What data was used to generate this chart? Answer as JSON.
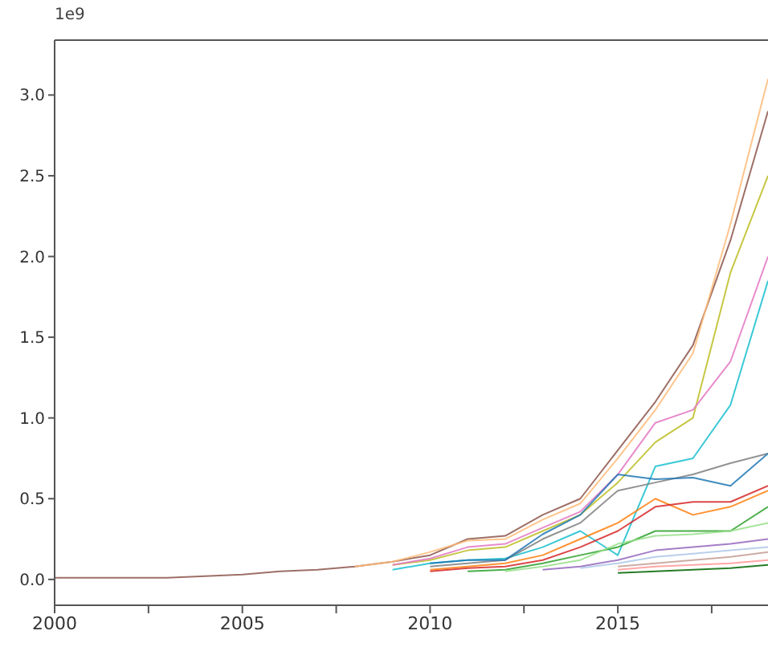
{
  "chart_data": {
    "type": "line",
    "x": [
      2000,
      2001,
      2002,
      2003,
      2004,
      2005,
      2006,
      2007,
      2008,
      2009,
      2010,
      2011,
      2012,
      2013,
      2014,
      2015,
      2016,
      2017,
      2018,
      2019
    ],
    "xlim": [
      2000,
      2019
    ],
    "xticks": [
      2000,
      {
        "value": 2002.5,
        "label": null
      },
      2005,
      {
        "value": 2007.5,
        "label": null
      },
      2010,
      {
        "value": 2012.5,
        "label": null
      },
      2015,
      {
        "value": 2017.5,
        "label": null
      }
    ],
    "ylim": [
      -0.16,
      3.34
    ],
    "yticks": [
      {
        "value": 0,
        "label": "0.0"
      },
      0.5,
      {
        "value": 1,
        "label": "1.0"
      },
      1.5,
      {
        "value": 2,
        "label": "2.0"
      },
      2.5,
      {
        "value": 3,
        "label": "3.0"
      }
    ],
    "annotations": [
      "1e9"
    ],
    "series": [
      {
        "color": "#8c564b",
        "values": [
          0.01,
          0.01,
          0.01,
          0.01,
          0.02,
          0.03,
          0.05,
          0.06,
          0.08,
          0.11,
          0.15,
          0.25,
          0.27,
          0.4,
          0.5,
          0.8,
          1.1,
          1.45,
          2.1,
          2.9
        ]
      },
      {
        "color": "#ffbb78",
        "values": [
          null,
          null,
          null,
          null,
          null,
          null,
          null,
          null,
          0.08,
          0.11,
          0.17,
          0.24,
          0.25,
          0.37,
          0.47,
          0.75,
          1.05,
          1.4,
          2.2,
          3.1
        ]
      },
      {
        "color": "#bcbd22",
        "values": [
          null,
          null,
          null,
          null,
          null,
          null,
          null,
          null,
          null,
          0.09,
          0.12,
          0.18,
          0.2,
          0.3,
          0.4,
          0.6,
          0.85,
          1.0,
          1.9,
          2.5
        ]
      },
      {
        "color": "#e377c2",
        "values": [
          null,
          null,
          null,
          null,
          null,
          null,
          null,
          null,
          null,
          0.09,
          0.13,
          0.2,
          0.22,
          0.32,
          0.42,
          0.65,
          0.97,
          1.05,
          1.35,
          2.0
        ]
      },
      {
        "color": "#17becf",
        "values": [
          null,
          null,
          null,
          null,
          null,
          null,
          null,
          null,
          null,
          0.06,
          0.1,
          0.12,
          0.13,
          0.2,
          0.3,
          0.15,
          0.7,
          0.75,
          1.08,
          1.85
        ]
      },
      {
        "color": "#7f7f7f",
        "values": [
          null,
          null,
          null,
          null,
          null,
          null,
          null,
          null,
          null,
          null,
          0.08,
          0.1,
          0.12,
          0.25,
          0.35,
          0.55,
          0.6,
          0.65,
          0.72,
          0.78
        ]
      },
      {
        "color": "#1f77b4",
        "values": [
          null,
          null,
          null,
          null,
          null,
          null,
          null,
          null,
          null,
          null,
          0.1,
          0.12,
          0.12,
          0.28,
          0.4,
          0.65,
          0.62,
          0.63,
          0.58,
          0.78
        ]
      },
      {
        "color": "#ff7f0e",
        "values": [
          null,
          null,
          null,
          null,
          null,
          null,
          null,
          null,
          null,
          null,
          0.06,
          0.08,
          0.1,
          0.15,
          0.25,
          0.35,
          0.5,
          0.4,
          0.45,
          0.55
        ]
      },
      {
        "color": "#d62728",
        "values": [
          null,
          null,
          null,
          null,
          null,
          null,
          null,
          null,
          null,
          null,
          0.05,
          0.07,
          0.08,
          0.12,
          0.2,
          0.3,
          0.45,
          0.48,
          0.48,
          0.58
        ]
      },
      {
        "color": "#2ca02c",
        "values": [
          null,
          null,
          null,
          null,
          null,
          null,
          null,
          null,
          null,
          null,
          null,
          0.05,
          0.06,
          0.1,
          0.15,
          0.2,
          0.3,
          0.3,
          0.3,
          0.45
        ]
      },
      {
        "color": "#98df8a",
        "values": [
          null,
          null,
          null,
          null,
          null,
          null,
          null,
          null,
          null,
          null,
          null,
          null,
          0.05,
          0.08,
          0.12,
          0.22,
          0.27,
          0.28,
          0.3,
          0.35
        ]
      },
      {
        "color": "#9467bd",
        "values": [
          null,
          null,
          null,
          null,
          null,
          null,
          null,
          null,
          null,
          null,
          null,
          null,
          null,
          0.06,
          0.08,
          0.12,
          0.18,
          0.2,
          0.22,
          0.25
        ]
      },
      {
        "color": "#aec7e8",
        "values": [
          null,
          null,
          null,
          null,
          null,
          null,
          null,
          null,
          null,
          null,
          null,
          null,
          null,
          null,
          0.07,
          0.1,
          0.14,
          0.16,
          0.18,
          0.2
        ]
      },
      {
        "color": "#c49c94",
        "values": [
          null,
          null,
          null,
          null,
          null,
          null,
          null,
          null,
          null,
          null,
          null,
          null,
          null,
          null,
          null,
          0.08,
          0.1,
          0.12,
          0.14,
          0.17
        ]
      },
      {
        "color": "#ff9896",
        "values": [
          null,
          null,
          null,
          null,
          null,
          null,
          null,
          null,
          null,
          null,
          null,
          null,
          null,
          null,
          null,
          0.06,
          0.08,
          0.09,
          0.1,
          0.12
        ]
      },
      {
        "color": "#006400",
        "values": [
          null,
          null,
          null,
          null,
          null,
          null,
          null,
          null,
          null,
          null,
          null,
          null,
          null,
          null,
          null,
          0.04,
          0.05,
          0.06,
          0.07,
          0.09
        ]
      }
    ]
  }
}
